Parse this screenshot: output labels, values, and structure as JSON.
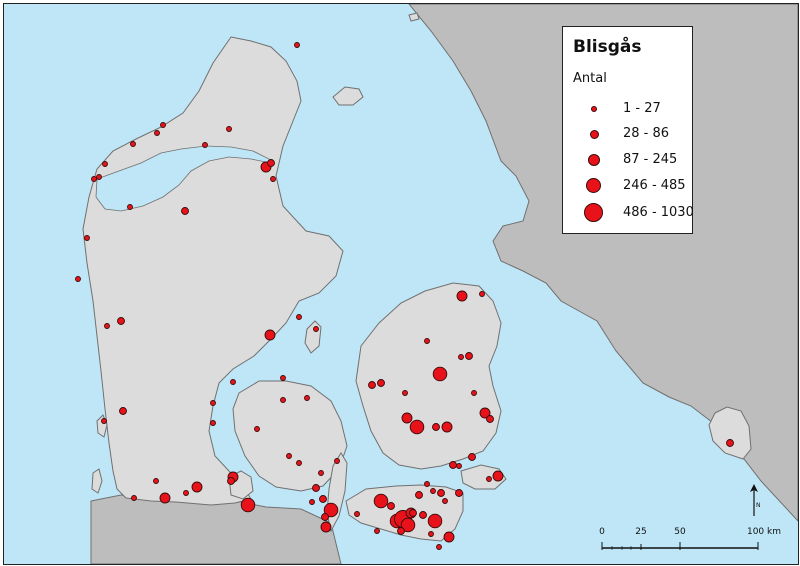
{
  "legend": {
    "title": "Blisgås",
    "subtitle": "Antal",
    "classes": [
      {
        "label": "1 - 27"
      },
      {
        "label": "28 - 86"
      },
      {
        "label": "87 - 245"
      },
      {
        "label": "246 - 485"
      },
      {
        "label": "486 - 1030"
      }
    ]
  },
  "scale_bar": {
    "ticks": [
      "0",
      "25",
      "50",
      "100 km"
    ]
  },
  "north_arrow": {
    "label": "N"
  },
  "colors": {
    "water": "#bfe6f7",
    "land_denmark": "#dcdcdc",
    "land_sweden_germany": "#bdbdbd",
    "coast": "#707070",
    "symbol_fill": "#e8131a",
    "symbol_stroke": "#3a0a0a"
  }
}
